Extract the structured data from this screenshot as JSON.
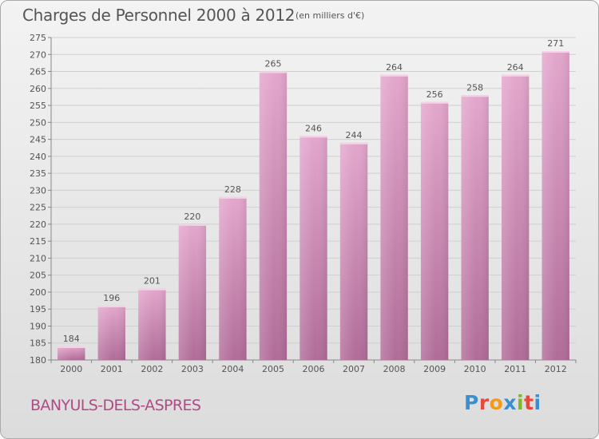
{
  "title": "Charges de Personnel 2000 à 2012",
  "unit": "(en milliers d'€)",
  "town": "BANYULS-DELS-ASPRES",
  "logo": {
    "text": "Proxiti",
    "letter_colors": [
      "#3a8fd1",
      "#e8473c",
      "#f19a1b",
      "#3a8fd1",
      "#7ab929",
      "#e8473c",
      "#3a8fd1"
    ]
  },
  "colors": {
    "bar_top": "#e3a6cc",
    "bar_bottom": "#b06c98",
    "text": "#555555",
    "grid": "#cfcfcf"
  },
  "chart_data": {
    "type": "bar",
    "title": "Charges de Personnel 2000 à 2012",
    "subtitle": "(en milliers d'€)",
    "categories": [
      "2000",
      "2001",
      "2002",
      "2003",
      "2004",
      "2005",
      "2006",
      "2007",
      "2008",
      "2009",
      "2010",
      "2011",
      "2012"
    ],
    "values": [
      184,
      196,
      201,
      220,
      228,
      265,
      246,
      244,
      264,
      256,
      258,
      264,
      271
    ],
    "ylim": [
      180,
      275
    ],
    "ytick_step": 5,
    "grid": true,
    "data_labels": true
  }
}
